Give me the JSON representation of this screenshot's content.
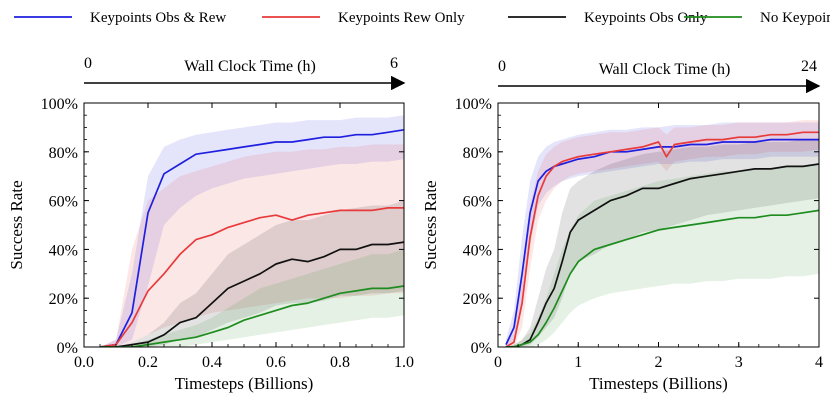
{
  "legend": [
    {
      "name": "Keypoints Obs & Rew",
      "color": "#1f1fe0"
    },
    {
      "name": "Keypoints Rew Only",
      "color": "#e83a3a"
    },
    {
      "name": "Keypoints Obs Only",
      "color": "#111111"
    },
    {
      "name": "No Keypoints",
      "color": "#1e8c1e"
    }
  ],
  "chart_data": [
    {
      "type": "line",
      "xlabel": "Timesteps (Billions)",
      "ylabel": "Success Rate",
      "xlim": [
        0.0,
        1.0
      ],
      "ylim": [
        0,
        100
      ],
      "xticks": [
        "0.0",
        "0.2",
        "0.4",
        "0.6",
        "0.8",
        "1.0"
      ],
      "xtick_values": [
        0,
        0.2,
        0.4,
        0.6,
        0.8,
        1.0
      ],
      "yticks": [
        "0%",
        "20%",
        "40%",
        "60%",
        "80%",
        "100%"
      ],
      "ytick_values": [
        0,
        20,
        40,
        60,
        80,
        100
      ],
      "clock": {
        "label": "Wall Clock Time (h)",
        "start": "0",
        "end": "6"
      },
      "series": [
        {
          "name": "Keypoints Obs & Rew",
          "color": "#1f1fe0",
          "x": [
            0.05,
            0.1,
            0.15,
            0.2,
            0.25,
            0.3,
            0.35,
            0.4,
            0.45,
            0.5,
            0.55,
            0.6,
            0.65,
            0.7,
            0.75,
            0.8,
            0.85,
            0.9,
            0.95,
            1.0
          ],
          "y": [
            0,
            1,
            14,
            55,
            71,
            75,
            79,
            80,
            81,
            82,
            83,
            84,
            84,
            85,
            86,
            86,
            87,
            87,
            88,
            89
          ],
          "lower": [
            0,
            0,
            3,
            25,
            50,
            57,
            62,
            65,
            67,
            69,
            70,
            71,
            72,
            73,
            74,
            75,
            75,
            76,
            76,
            77
          ],
          "upper": [
            0,
            3,
            30,
            70,
            82,
            85,
            87,
            88,
            89,
            90,
            91,
            92,
            92,
            93,
            93,
            93,
            94,
            94,
            94,
            95
          ]
        },
        {
          "name": "Keypoints Rew Only",
          "color": "#e83a3a",
          "x": [
            0.05,
            0.1,
            0.15,
            0.2,
            0.25,
            0.3,
            0.35,
            0.4,
            0.45,
            0.5,
            0.55,
            0.6,
            0.65,
            0.7,
            0.75,
            0.8,
            0.85,
            0.9,
            0.95,
            1.0
          ],
          "y": [
            0,
            1,
            10,
            23,
            30,
            38,
            44,
            46,
            49,
            51,
            53,
            54,
            52,
            54,
            55,
            56,
            56,
            56,
            57,
            57
          ],
          "lower": [
            0,
            0,
            2,
            5,
            8,
            10,
            12,
            14,
            15,
            16,
            17,
            18,
            19,
            20,
            20,
            20,
            21,
            21,
            22,
            22
          ],
          "upper": [
            0,
            3,
            40,
            60,
            65,
            70,
            72,
            74,
            76,
            78,
            79,
            80,
            80,
            81,
            81,
            82,
            82,
            83,
            83,
            83
          ]
        },
        {
          "name": "Keypoints Obs Only",
          "color": "#111111",
          "x": [
            0.05,
            0.1,
            0.15,
            0.2,
            0.25,
            0.3,
            0.35,
            0.4,
            0.45,
            0.5,
            0.55,
            0.6,
            0.65,
            0.7,
            0.75,
            0.8,
            0.85,
            0.9,
            0.95,
            1.0
          ],
          "y": [
            0,
            0,
            1,
            2,
            5,
            10,
            12,
            18,
            24,
            27,
            30,
            34,
            36,
            35,
            37,
            40,
            40,
            42,
            42,
            43
          ],
          "lower": [
            0,
            0,
            0,
            0,
            1,
            3,
            4,
            7,
            10,
            12,
            14,
            17,
            18,
            18,
            19,
            21,
            21,
            22,
            22,
            23
          ],
          "upper": [
            0,
            0,
            2,
            5,
            10,
            18,
            22,
            30,
            38,
            42,
            46,
            50,
            52,
            52,
            54,
            56,
            57,
            58,
            58,
            60
          ]
        },
        {
          "name": "No Keypoints",
          "color": "#1e8c1e",
          "x": [
            0.05,
            0.1,
            0.15,
            0.2,
            0.25,
            0.3,
            0.35,
            0.4,
            0.45,
            0.5,
            0.55,
            0.6,
            0.65,
            0.7,
            0.75,
            0.8,
            0.85,
            0.9,
            0.95,
            1.0
          ],
          "y": [
            0,
            0,
            0,
            1,
            2,
            3,
            4,
            6,
            8,
            11,
            13,
            15,
            17,
            18,
            20,
            22,
            23,
            24,
            24,
            25
          ],
          "lower": [
            0,
            0,
            0,
            0,
            0,
            0,
            1,
            2,
            3,
            4,
            5,
            6,
            7,
            8,
            9,
            10,
            11,
            12,
            12,
            13
          ],
          "upper": [
            0,
            0,
            1,
            3,
            5,
            7,
            9,
            12,
            16,
            20,
            24,
            26,
            28,
            30,
            32,
            34,
            36,
            38,
            38,
            40
          ]
        }
      ]
    },
    {
      "type": "line",
      "xlabel": "Timesteps (Billions)",
      "ylabel": "Success Rate",
      "xlim": [
        0,
        4
      ],
      "ylim": [
        0,
        100
      ],
      "xticks": [
        "0",
        "1",
        "2",
        "3",
        "4"
      ],
      "xtick_values": [
        0,
        1,
        2,
        3,
        4
      ],
      "yticks": [
        "0%",
        "20%",
        "40%",
        "60%",
        "80%",
        "100%"
      ],
      "ytick_values": [
        0,
        20,
        40,
        60,
        80,
        100
      ],
      "clock": {
        "label": "Wall Clock Time (h)",
        "start": "0",
        "end": "24"
      },
      "series": [
        {
          "name": "Keypoints Obs & Rew",
          "color": "#1f1fe0",
          "x": [
            0.1,
            0.2,
            0.3,
            0.4,
            0.5,
            0.6,
            0.7,
            0.8,
            0.9,
            1.0,
            1.2,
            1.4,
            1.6,
            1.8,
            2.0,
            2.2,
            2.4,
            2.6,
            2.8,
            3.0,
            3.2,
            3.4,
            3.6,
            3.8,
            4.0
          ],
          "y": [
            1,
            8,
            30,
            55,
            68,
            72,
            74,
            75,
            76,
            77,
            78,
            80,
            80,
            81,
            82,
            82,
            83,
            83,
            84,
            84,
            84,
            85,
            85,
            85,
            85
          ],
          "lower": [
            0,
            3,
            18,
            42,
            58,
            63,
            66,
            68,
            69,
            70,
            71,
            72,
            73,
            74,
            75,
            75,
            76,
            76,
            77,
            77,
            77,
            78,
            78,
            78,
            78
          ],
          "upper": [
            3,
            15,
            45,
            68,
            78,
            82,
            84,
            85,
            86,
            87,
            88,
            89,
            89,
            90,
            90,
            91,
            91,
            91,
            92,
            92,
            92,
            92,
            92,
            92,
            92
          ]
        },
        {
          "name": "Keypoints Rew Only",
          "color": "#e83a3a",
          "x": [
            0.1,
            0.2,
            0.3,
            0.4,
            0.5,
            0.6,
            0.7,
            0.8,
            0.9,
            1.0,
            1.2,
            1.4,
            1.6,
            1.8,
            2.0,
            2.1,
            2.2,
            2.4,
            2.6,
            2.8,
            3.0,
            3.2,
            3.4,
            3.6,
            3.8,
            4.0
          ],
          "y": [
            0,
            2,
            18,
            45,
            62,
            70,
            74,
            76,
            77,
            78,
            79,
            80,
            81,
            82,
            84,
            78,
            83,
            84,
            85,
            85,
            86,
            86,
            87,
            87,
            88,
            88
          ],
          "lower": [
            0,
            0,
            8,
            32,
            52,
            60,
            65,
            68,
            70,
            71,
            72,
            73,
            74,
            75,
            76,
            72,
            76,
            77,
            78,
            78,
            79,
            79,
            80,
            80,
            80,
            81
          ],
          "upper": [
            1,
            6,
            32,
            58,
            72,
            79,
            82,
            84,
            85,
            86,
            87,
            88,
            88,
            89,
            90,
            87,
            90,
            90,
            91,
            91,
            92,
            92,
            92,
            92,
            93,
            93
          ]
        },
        {
          "name": "Keypoints Obs Only",
          "color": "#111111",
          "x": [
            0.1,
            0.2,
            0.3,
            0.4,
            0.5,
            0.6,
            0.7,
            0.8,
            0.9,
            1.0,
            1.2,
            1.4,
            1.6,
            1.8,
            2.0,
            2.2,
            2.4,
            2.6,
            2.8,
            3.0,
            3.2,
            3.4,
            3.6,
            3.8,
            4.0
          ],
          "y": [
            0,
            0,
            1,
            3,
            10,
            18,
            24,
            35,
            47,
            52,
            56,
            60,
            62,
            65,
            65,
            67,
            69,
            70,
            71,
            72,
            73,
            73,
            74,
            74,
            75
          ],
          "lower": [
            0,
            0,
            0,
            1,
            4,
            8,
            12,
            20,
            30,
            35,
            38,
            42,
            44,
            47,
            48,
            50,
            52,
            54,
            55,
            56,
            57,
            58,
            59,
            60,
            61
          ],
          "upper": [
            0,
            1,
            3,
            8,
            20,
            32,
            40,
            55,
            65,
            68,
            72,
            75,
            77,
            79,
            80,
            81,
            82,
            82,
            83,
            83,
            84,
            84,
            84,
            85,
            85
          ]
        },
        {
          "name": "No Keypoints",
          "color": "#1e8c1e",
          "x": [
            0.1,
            0.2,
            0.3,
            0.4,
            0.5,
            0.6,
            0.7,
            0.8,
            0.9,
            1.0,
            1.2,
            1.4,
            1.6,
            1.8,
            2.0,
            2.2,
            2.4,
            2.6,
            2.8,
            3.0,
            3.2,
            3.4,
            3.6,
            3.8,
            4.0
          ],
          "y": [
            0,
            0,
            1,
            2,
            5,
            10,
            16,
            23,
            30,
            35,
            40,
            42,
            44,
            46,
            48,
            49,
            50,
            51,
            52,
            53,
            53,
            54,
            54,
            55,
            56
          ],
          "lower": [
            0,
            0,
            0,
            0,
            1,
            3,
            6,
            10,
            14,
            17,
            20,
            22,
            23,
            24,
            25,
            26,
            26,
            27,
            27,
            28,
            28,
            28,
            29,
            29,
            30
          ],
          "upper": [
            0,
            1,
            3,
            6,
            12,
            20,
            30,
            40,
            48,
            54,
            60,
            62,
            64,
            66,
            68,
            69,
            70,
            71,
            72,
            72,
            73,
            73,
            74,
            74,
            75
          ]
        }
      ]
    }
  ]
}
